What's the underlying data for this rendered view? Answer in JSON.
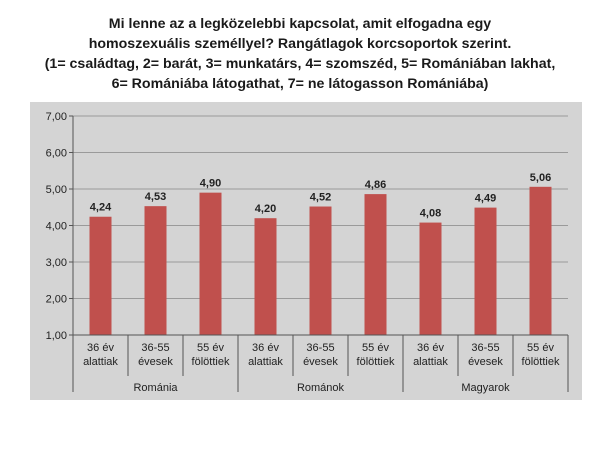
{
  "title_lines": [
    "Mi lenne az a legközelebbi kapcsolat, amit elfogadna egy",
    "homoszexuális személlyel? Rangátlagok korcsoportok szerint.",
    "(1= családtag, 2= barát, 3=  munkatárs, 4= szomszéd, 5=  Romániában lakhat,",
    "6=  Romániába látogathat, 7=  ne látogasson Romániába)"
  ],
  "chart_data": {
    "type": "bar",
    "title": "Mi lenne az a legközelebbi kapcsolat, amit elfogadna egy homoszexuális személlyel? Rangátlagok korcsoportok szerint.",
    "ylim": [
      1,
      7
    ],
    "yticks": [
      "1,00",
      "2,00",
      "3,00",
      "4,00",
      "5,00",
      "6,00",
      "7,00"
    ],
    "ytick_values": [
      1,
      2,
      3,
      4,
      5,
      6,
      7
    ],
    "grid": true,
    "bar_color": "#c0504d",
    "groups": [
      "Románia",
      "Románok",
      "Magyarok"
    ],
    "categories": [
      [
        "36 év",
        "alattiak"
      ],
      [
        "36-55",
        "évesek"
      ],
      [
        "55 év",
        "fölöttiek"
      ],
      [
        "36 év",
        "alattiak"
      ],
      [
        "36-55",
        "évesek"
      ],
      [
        "55 év",
        "fölöttiek"
      ],
      [
        "36 év",
        "alattiak"
      ],
      [
        "36-55",
        "évesek"
      ],
      [
        "55 év",
        "fölöttiek"
      ]
    ],
    "values": [
      4.24,
      4.53,
      4.9,
      4.2,
      4.52,
      4.86,
      4.08,
      4.49,
      5.06
    ],
    "value_labels": [
      "4,24",
      "4,53",
      "4,90",
      "4,20",
      "4,52",
      "4,86",
      "4,08",
      "4,49",
      "5,06"
    ]
  }
}
